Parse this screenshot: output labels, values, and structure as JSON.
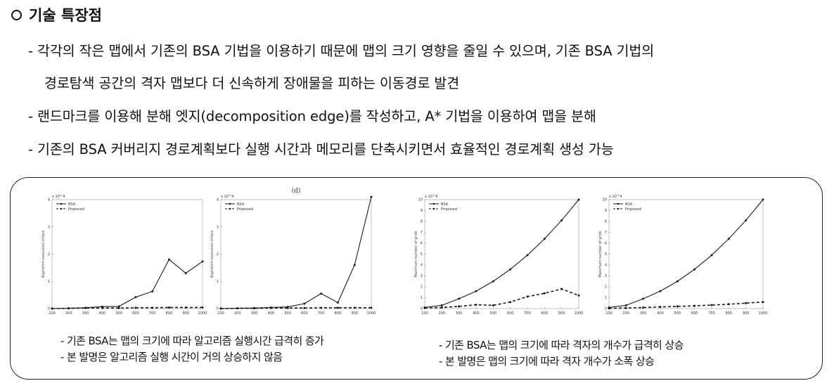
{
  "heading": {
    "icon": "circle-icon",
    "title": "기술 특장점"
  },
  "bullets": [
    {
      "line1": "- 각각의 작은 맵에서 기존의 BSA 기법을 이용하기 때문에 맵의 크기 영향을 줄일 수 있으며, 기존 BSA 기법의",
      "line2": "경로탐색 공간의 격자 맵보다 더 신속하게 장애물을 피하는 이동경로 발견"
    },
    {
      "line1": "- 랜드마크를 이용해 분해 엣지(decomposition edge)를 작성하고, A* 기법을 이용하여 맵을 분해"
    },
    {
      "line1": "- 기존의 BSA 커버리지 경로계획보다 실행 시간과 메모리를 단축시키면서 효율적인 경로계획 생성 가능"
    }
  ],
  "captions": {
    "left_1": "- 기존 BSA는 맵의 크기에 따라 알고리즘 실행시간 급격히 증가",
    "left_2": "- 본 발명은 알고리즘 실행 시간이 거의 상승하지 않음",
    "right_1": "-     기존 BSA는 맵의 크기에 따라 격자의 개수가 급격히 상승",
    "right_2": "-     본 발명은 맵의 크기에 따라 격자 개수가 소폭 상승"
  },
  "chart_data": [
    {
      "type": "line",
      "subtitle": "",
      "x": [
        100,
        200,
        300,
        400,
        500,
        600,
        700,
        800,
        900,
        1000
      ],
      "ylabel": "Algorithm execution time/s",
      "ylim": [
        0,
        4
      ],
      "y_exponent": "x 10^4",
      "series": [
        {
          "name": "BSA",
          "values": [
            0,
            0.01,
            0.03,
            0.07,
            0.08,
            0.42,
            0.63,
            1.8,
            1.3,
            1.73
          ]
        },
        {
          "name": "Proposed",
          "values": [
            0,
            0.01,
            0.02,
            0.02,
            0.02,
            0.03,
            0.03,
            0.04,
            0.04,
            0.04
          ]
        }
      ]
    },
    {
      "type": "line",
      "subtitle": "(d)",
      "x": [
        100,
        200,
        300,
        400,
        500,
        600,
        700,
        800,
        900,
        1000
      ],
      "ylabel": "Algorithm execution time/s",
      "ylim": [
        0,
        4
      ],
      "y_exponent": "x 10^4",
      "series": [
        {
          "name": "BSA",
          "values": [
            0,
            0.01,
            0.02,
            0.04,
            0.06,
            0.18,
            0.55,
            0.22,
            1.6,
            4.1
          ]
        },
        {
          "name": "Proposed",
          "values": [
            0,
            0.01,
            0.01,
            0.02,
            0.02,
            0.02,
            0.03,
            0.03,
            0.03,
            0.03
          ]
        }
      ]
    },
    {
      "type": "line",
      "subtitle": "",
      "x": [
        100,
        200,
        300,
        400,
        500,
        600,
        700,
        800,
        900,
        1000
      ],
      "ylabel": "Maximum number of grids",
      "ylim": [
        0,
        10
      ],
      "y_exponent": "x 10^4",
      "series": [
        {
          "name": "BSA",
          "values": [
            0.1,
            0.3,
            0.9,
            1.6,
            2.5,
            3.6,
            4.9,
            6.4,
            8.1,
            10
          ]
        },
        {
          "name": "Proposed",
          "values": [
            0.05,
            0.1,
            0.2,
            0.35,
            0.3,
            0.6,
            1.1,
            1.4,
            1.8,
            1.2
          ]
        }
      ]
    },
    {
      "type": "line",
      "subtitle": "",
      "x": [
        100,
        200,
        300,
        400,
        500,
        600,
        700,
        800,
        900,
        1000
      ],
      "ylabel": "Maximum number of grids",
      "ylim": [
        0,
        10
      ],
      "y_exponent": "x 10^4",
      "series": [
        {
          "name": "BSA",
          "values": [
            0.1,
            0.3,
            0.9,
            1.6,
            2.5,
            3.6,
            4.9,
            6.4,
            8.1,
            10
          ]
        },
        {
          "name": "Proposed",
          "values": [
            0.02,
            0.05,
            0.1,
            0.15,
            0.2,
            0.25,
            0.32,
            0.4,
            0.5,
            0.6
          ]
        }
      ]
    }
  ],
  "colors": {
    "text": "#111111",
    "line": "#1a1a1a",
    "highlight_tick": "#d79b2a"
  }
}
